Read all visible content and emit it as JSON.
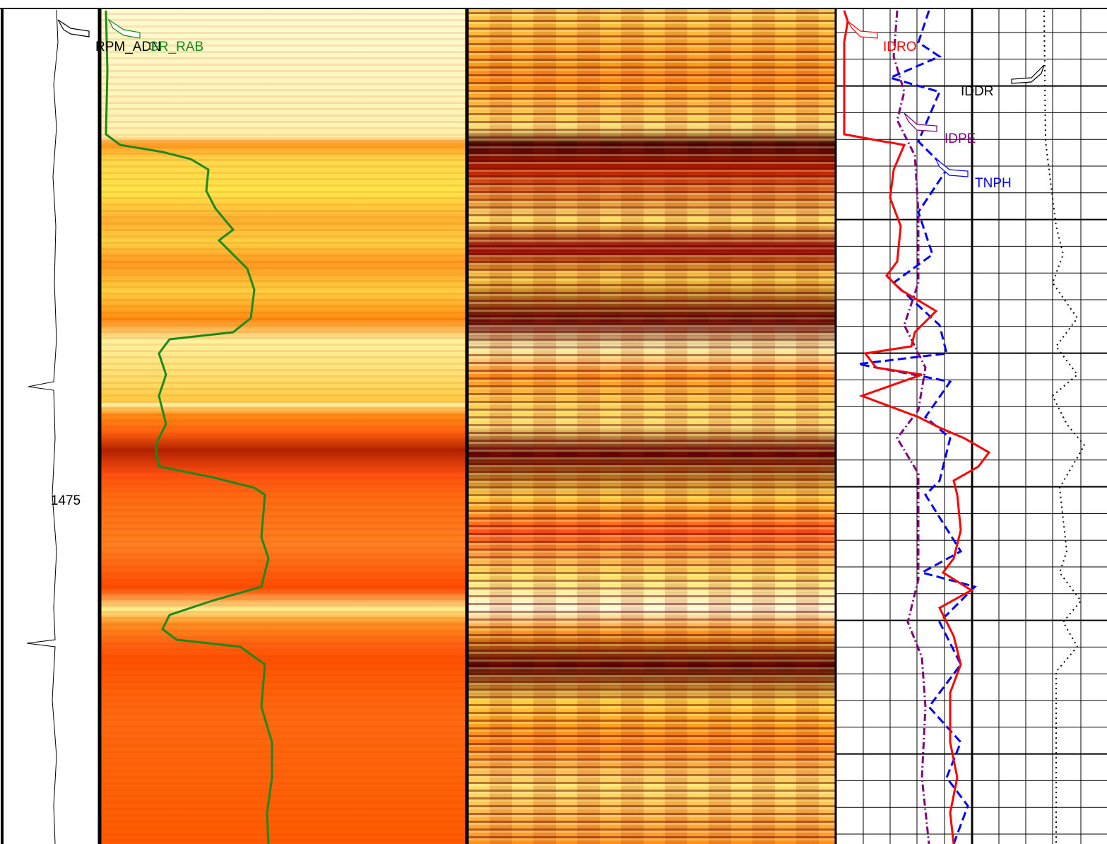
{
  "depth_track": {
    "depth_label": "1475"
  },
  "curve_labels": [
    {
      "name": "RPM_ADN",
      "color": "#000000"
    },
    {
      "name": "GR_RAB",
      "color": "#1a8a1a"
    },
    {
      "name": "IDRO",
      "color": "#ff0000"
    },
    {
      "name": "IDDR",
      "color": "#000000"
    },
    {
      "name": "IDPE",
      "color": "#800080"
    },
    {
      "name": "TNPH",
      "color": "#0000ff"
    }
  ]
}
